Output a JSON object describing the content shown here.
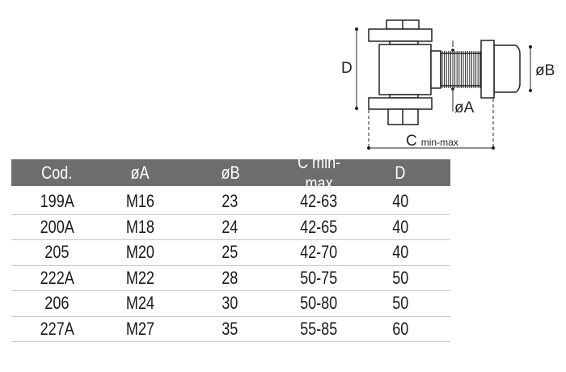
{
  "diagram": {
    "labels": {
      "d": "D",
      "b": "øB",
      "a": "øA",
      "c": "C",
      "c_sub": "min-max"
    }
  },
  "table": {
    "header_color": "#6d6d6d",
    "columns": [
      "Cod.",
      "øA",
      "øB",
      "C min-max",
      "D"
    ],
    "rows": [
      [
        "199A",
        "M16",
        "23",
        "42-63",
        "40"
      ],
      [
        "200A",
        "M18",
        "24",
        "42-65",
        "40"
      ],
      [
        "205",
        "M20",
        "25",
        "42-70",
        "40"
      ],
      [
        "222A",
        "M22",
        "28",
        "50-75",
        "50"
      ],
      [
        "206",
        "M24",
        "30",
        "50-80",
        "50"
      ],
      [
        "227A",
        "M27",
        "35",
        "55-85",
        "60"
      ]
    ]
  }
}
